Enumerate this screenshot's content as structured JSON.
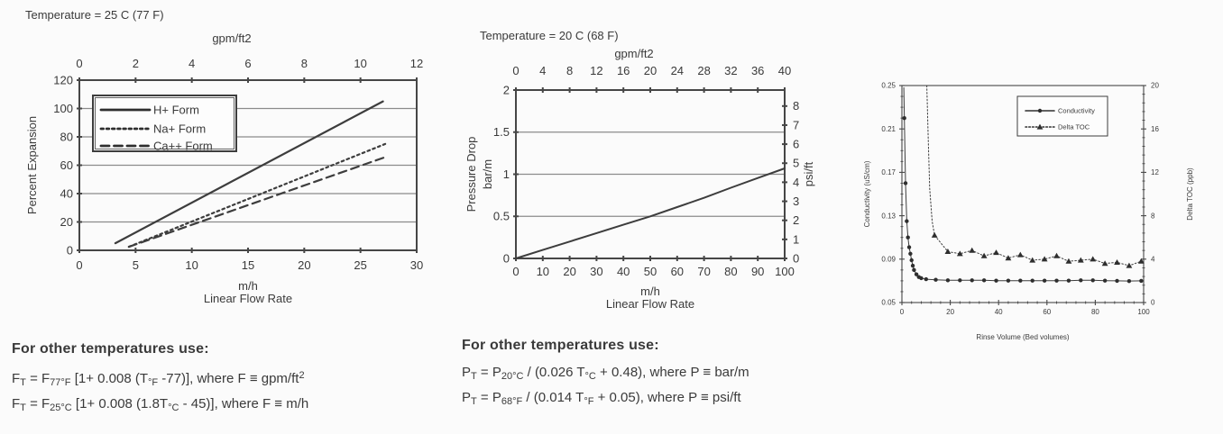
{
  "page": {
    "background": "#fbfbfb",
    "text_color": "#3a3a3a",
    "line_color": "#464646",
    "grid_color": "#8b8b8b"
  },
  "chart_data": [
    {
      "type": "line",
      "name": "bed-expansion",
      "title": "Temperature = 25 C (77 F)",
      "top_axis": {
        "label": "gpm/ft2",
        "range": [
          0,
          12
        ],
        "ticks": [
          0,
          2,
          4,
          6,
          8,
          10,
          12
        ]
      },
      "x_axis": {
        "unit": "m/h",
        "label": "Linear Flow Rate",
        "range": [
          0,
          30
        ],
        "ticks": [
          0,
          5,
          10,
          15,
          20,
          25,
          30
        ]
      },
      "y_axis": {
        "label": "Percent Expansion",
        "range": [
          0,
          120
        ],
        "ticks": [
          0,
          20,
          40,
          60,
          80,
          100,
          120
        ],
        "grid": true
      },
      "legend": {
        "position": "top-left-inside",
        "entries": [
          "H+ Form",
          "Na+ Form",
          "Ca++ Form"
        ]
      },
      "series": [
        {
          "name": "H+ Form",
          "style": "solid",
          "axis": "left",
          "points": [
            [
              3.2,
              5
            ],
            [
              27,
              105
            ]
          ]
        },
        {
          "name": "Na+ Form",
          "style": "dotted",
          "axis": "left",
          "points": [
            [
              4.4,
              2.5
            ],
            [
              27.2,
              75
            ]
          ]
        },
        {
          "name": "Ca++ Form",
          "style": "dashed",
          "axis": "left",
          "points": [
            [
              4.4,
              2.5
            ],
            [
              27.3,
              66
            ]
          ]
        }
      ]
    },
    {
      "type": "line",
      "name": "pressure-drop",
      "title": "Temperature = 20 C (68 F)",
      "top_axis": {
        "label": "gpm/ft2",
        "range": [
          0,
          40
        ],
        "ticks": [
          0,
          4,
          8,
          12,
          16,
          20,
          24,
          28,
          32,
          36,
          40
        ]
      },
      "x_axis": {
        "unit": "m/h",
        "label": "Linear Flow Rate",
        "range": [
          0,
          100
        ],
        "ticks": [
          0,
          10,
          20,
          30,
          40,
          50,
          60,
          70,
          80,
          90,
          100
        ]
      },
      "y_axis": {
        "label": "Pressure Drop",
        "unit": "bar/m",
        "range": [
          0,
          2
        ],
        "ticks": [
          0,
          0.5,
          1,
          1.5,
          2
        ],
        "tick_labels": [
          "0",
          "0.5",
          "1",
          "1.5",
          "2"
        ],
        "grid": true
      },
      "right_axis": {
        "label": "psi/ft",
        "range": [
          0,
          8
        ],
        "ticks": [
          0,
          1,
          2,
          3,
          4,
          5,
          6,
          7,
          8
        ],
        "left_equiv": {
          "offset": 0,
          "scale": 0.2262
        }
      },
      "series": [
        {
          "name": "Pressure Drop",
          "style": "solid",
          "axis": "left",
          "points": [
            [
              0,
              0
            ],
            [
              10,
              0.1
            ],
            [
              20,
              0.2
            ],
            [
              30,
              0.3
            ],
            [
              40,
              0.4
            ],
            [
              50,
              0.5
            ],
            [
              60,
              0.61
            ],
            [
              70,
              0.72
            ],
            [
              80,
              0.84
            ],
            [
              90,
              0.955
            ],
            [
              100,
              1.07
            ]
          ]
        }
      ]
    },
    {
      "type": "line",
      "name": "rinse-profile",
      "x_axis": {
        "label": "Rinse Volume  (Bed volumes)",
        "range": [
          0,
          100
        ],
        "ticks": [
          0,
          20,
          40,
          60,
          80,
          100
        ],
        "minor_step": 4
      },
      "y_axis": {
        "label": "Conductivity  (uS/cm)",
        "range": [
          0.05,
          0.25
        ],
        "ticks": [
          0.05,
          0.09,
          0.13,
          0.17,
          0.21,
          0.25
        ],
        "tick_labels": [
          "0.05",
          "0.09",
          "0.13",
          "0.17",
          "0.21",
          "0.25"
        ],
        "minor_step": 0.01
      },
      "right_axis": {
        "label": "Delta TOC  (ppb)",
        "range": [
          0,
          20
        ],
        "ticks": [
          0,
          4,
          8,
          12,
          16,
          20
        ],
        "minor_step": 0.8,
        "left_equiv": {
          "offset": 0.05,
          "scale": 0.01
        }
      },
      "legend": {
        "position": "top-center-inside",
        "entries": [
          "Conductivity",
          "Delta TOC"
        ]
      },
      "series": [
        {
          "name": "Conductivity",
          "style": "solid",
          "axis": "left",
          "marker": "circle",
          "marker_from": 1,
          "points": [
            [
              0.8,
              0.248
            ],
            [
              1,
              0.22
            ],
            [
              1.5,
              0.16
            ],
            [
              2,
              0.125
            ],
            [
              2.5,
              0.11
            ],
            [
              3,
              0.101
            ],
            [
              3.5,
              0.095
            ],
            [
              4,
              0.089
            ],
            [
              4.5,
              0.084
            ],
            [
              5,
              0.08
            ],
            [
              6,
              0.076
            ],
            [
              7,
              0.0735
            ],
            [
              8,
              0.0725
            ],
            [
              10,
              0.0715
            ],
            [
              14,
              0.071
            ],
            [
              19,
              0.0705
            ],
            [
              24,
              0.0705
            ],
            [
              29,
              0.0705
            ],
            [
              34,
              0.0705
            ],
            [
              39,
              0.0702
            ],
            [
              44,
              0.0702
            ],
            [
              49,
              0.0702
            ],
            [
              54,
              0.0702
            ],
            [
              59,
              0.0702
            ],
            [
              64,
              0.0702
            ],
            [
              69,
              0.0702
            ],
            [
              74,
              0.0705
            ],
            [
              79,
              0.0705
            ],
            [
              84,
              0.0702
            ],
            [
              89,
              0.07
            ],
            [
              94,
              0.0698
            ],
            [
              99,
              0.07
            ]
          ]
        },
        {
          "name": "Delta TOC",
          "style": "dotted",
          "axis": "right",
          "marker": "triangle",
          "marker_from": 4,
          "points": [
            [
              10.3,
              20.4
            ],
            [
              10.9,
              15
            ],
            [
              11.5,
              10.5
            ],
            [
              12.5,
              7.5
            ],
            [
              13.5,
              6.2
            ],
            [
              19,
              4.7
            ],
            [
              24,
              4.5
            ],
            [
              29,
              4.8
            ],
            [
              34,
              4.3
            ],
            [
              39,
              4.6
            ],
            [
              44,
              4.1
            ],
            [
              49,
              4.4
            ],
            [
              54,
              3.9
            ],
            [
              59,
              4.0
            ],
            [
              64,
              4.3
            ],
            [
              69,
              3.8
            ],
            [
              74,
              3.9
            ],
            [
              79,
              4.0
            ],
            [
              84,
              3.6
            ],
            [
              89,
              3.7
            ],
            [
              94,
              3.4
            ],
            [
              99,
              3.8
            ]
          ]
        }
      ]
    }
  ],
  "formulas": [
    {
      "heading": "For other temperatures use:",
      "lines": [
        {
          "parts": [
            [
              "n",
              "F"
            ],
            [
              "sub",
              "T"
            ],
            [
              "n",
              " = F"
            ],
            [
              "sub",
              "77°F"
            ],
            [
              "n",
              " [1+ 0.008 (T"
            ],
            [
              "sub",
              "°F"
            ],
            [
              "n",
              " -77)], where F ≡ gpm/ft"
            ],
            [
              "sup",
              "2"
            ]
          ]
        },
        {
          "parts": [
            [
              "n",
              "F"
            ],
            [
              "sub",
              "T"
            ],
            [
              "n",
              " = F"
            ],
            [
              "sub",
              "25°C"
            ],
            [
              "n",
              " [1+ 0.008 (1.8T"
            ],
            [
              "sub",
              "°C"
            ],
            [
              "n",
              " - 45)], where F ≡ m/h"
            ]
          ]
        }
      ]
    },
    {
      "heading": "For other temperatures use:",
      "lines": [
        {
          "parts": [
            [
              "n",
              "P"
            ],
            [
              "sub",
              "T"
            ],
            [
              "n",
              " = P"
            ],
            [
              "sub",
              "20°C"
            ],
            [
              "n",
              " / (0.026 T"
            ],
            [
              "sub",
              "°C"
            ],
            [
              "n",
              " + 0.48), where P ≡ bar/m"
            ]
          ]
        },
        {
          "parts": [
            [
              "n",
              "P"
            ],
            [
              "sub",
              "T"
            ],
            [
              "n",
              " = P"
            ],
            [
              "sub",
              "68°F"
            ],
            [
              "n",
              " / (0.014 T"
            ],
            [
              "sub",
              "°F"
            ],
            [
              "n",
              " + 0.05), where P ≡ psi/ft"
            ]
          ]
        }
      ]
    }
  ]
}
